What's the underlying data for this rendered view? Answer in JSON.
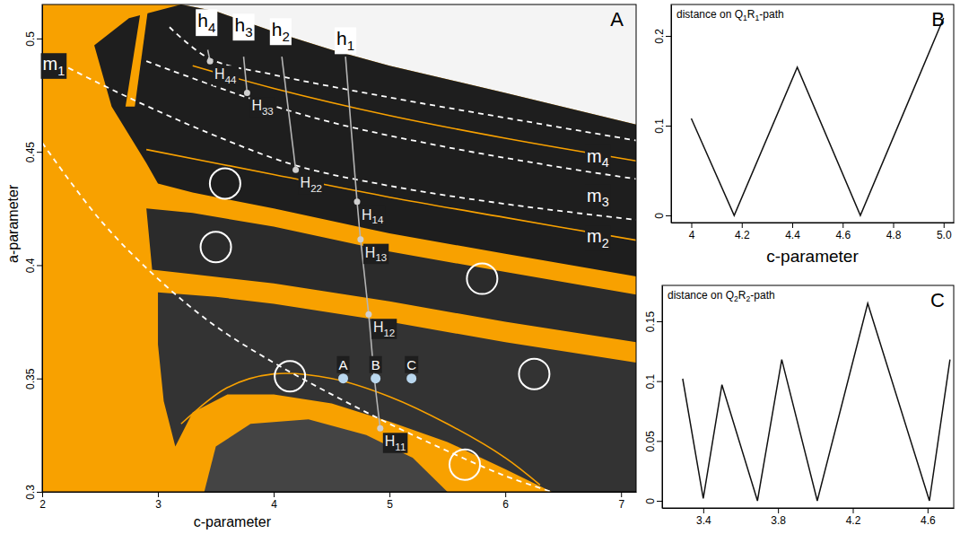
{
  "chart_data": [
    {
      "type": "parameter_plane",
      "label": "A",
      "x_label": "c-parameter",
      "y_label": "a-parameter",
      "color": "#f8a100",
      "xlim": [
        2,
        7.13
      ],
      "ylim": [
        0.3,
        0.515
      ],
      "xticks": [
        2,
        3,
        4,
        5,
        6,
        7
      ],
      "yticks": [
        0.3,
        0.35,
        0.4,
        0.45,
        0.5
      ],
      "regions": [
        {
          "color": "#f4f4f4",
          "points": [
            [
              3.2,
              0.515
            ],
            [
              3.5,
              0.512
            ],
            [
              4.0,
              0.503
            ],
            [
              4.5,
              0.495
            ],
            [
              5.0,
              0.488
            ],
            [
              6.0,
              0.476
            ],
            [
              7.13,
              0.462
            ],
            [
              7.13,
              0.515
            ]
          ]
        },
        {
          "color": "#1e1e1e",
          "points": [
            [
              2.45,
              0.497
            ],
            [
              2.75,
              0.509
            ],
            [
              3.2,
              0.515
            ],
            [
              3.5,
              0.512
            ],
            [
              4.0,
              0.503
            ],
            [
              4.5,
              0.495
            ],
            [
              5.0,
              0.488
            ],
            [
              6.0,
              0.476
            ],
            [
              7.13,
              0.462
            ],
            [
              7.13,
              0.395
            ],
            [
              6.0,
              0.405
            ],
            [
              5.0,
              0.414
            ],
            [
              4.0,
              0.425
            ],
            [
              3.3,
              0.432
            ],
            [
              3.0,
              0.436
            ],
            [
              2.9,
              0.445
            ],
            [
              2.6,
              0.47
            ]
          ]
        },
        {
          "color": "#2b2b2b",
          "points": [
            [
              2.9,
              0.425
            ],
            [
              3.3,
              0.423
            ],
            [
              4.0,
              0.417
            ],
            [
              5.0,
              0.406
            ],
            [
              6.0,
              0.397
            ],
            [
              7.13,
              0.387
            ],
            [
              7.13,
              0.366
            ],
            [
              6.0,
              0.375
            ],
            [
              5.0,
              0.384
            ],
            [
              4.0,
              0.392
            ],
            [
              3.3,
              0.396
            ],
            [
              2.95,
              0.398
            ]
          ]
        },
        {
          "color": "#333333",
          "points": [
            [
              3.0,
              0.388
            ],
            [
              3.5,
              0.386
            ],
            [
              4.0,
              0.383
            ],
            [
              5.0,
              0.375
            ],
            [
              6.0,
              0.366
            ],
            [
              7.13,
              0.357
            ],
            [
              7.13,
              0.3
            ],
            [
              6.4,
              0.3
            ],
            [
              6.0,
              0.31
            ],
            [
              5.5,
              0.322
            ],
            [
              5.0,
              0.331
            ],
            [
              4.5,
              0.339
            ],
            [
              4.0,
              0.343
            ],
            [
              3.6,
              0.343
            ],
            [
              3.3,
              0.335
            ],
            [
              3.15,
              0.32
            ],
            [
              3.05,
              0.34
            ],
            [
              3.0,
              0.365
            ]
          ]
        },
        {
          "color": "#444444",
          "points": [
            [
              3.4,
              0.3
            ],
            [
              3.5,
              0.32
            ],
            [
              3.8,
              0.33
            ],
            [
              4.3,
              0.332
            ],
            [
              4.8,
              0.325
            ],
            [
              5.2,
              0.315
            ],
            [
              5.5,
              0.3
            ]
          ]
        },
        {
          "color": "#f8a100",
          "points": [
            [
              2.72,
              0.47
            ],
            [
              2.86,
              0.515
            ],
            [
              2.92,
              0.515
            ],
            [
              2.8,
              0.47
            ]
          ]
        }
      ],
      "curves": [
        {
          "color": "#f8a100",
          "line_style": "solid",
          "x": [
            2.9,
            4.0,
            5.0,
            6.0,
            7.13
          ],
          "values": [
            0.451,
            0.44,
            0.43,
            0.421,
            0.411
          ]
        },
        {
          "color": "#f8a100",
          "line_style": "solid",
          "x": [
            3.3,
            4.0,
            5.0,
            6.0,
            7.13
          ],
          "values": [
            0.488,
            0.478,
            0.466,
            0.456,
            0.446
          ]
        },
        {
          "color": "#f8a100",
          "line_style": "solid",
          "x": [
            3.2,
            3.6,
            4.0,
            4.5,
            5.0,
            5.5,
            6.0,
            6.3
          ],
          "values": [
            0.33,
            0.346,
            0.352,
            0.35,
            0.342,
            0.33,
            0.315,
            0.303
          ]
        },
        {
          "label": "m1",
          "label_at": [
            2.1,
            0.486
          ],
          "color": "#ffffff",
          "line_style": "dashed",
          "x": [
            2.0,
            2.5,
            3.0,
            3.5,
            4.0,
            4.5,
            5.0,
            5.5,
            6.0,
            6.4
          ],
          "values": [
            0.454,
            0.42,
            0.394,
            0.373,
            0.357,
            0.343,
            0.33,
            0.318,
            0.307,
            0.3
          ]
        },
        {
          "label": "m2",
          "label_at": [
            6.8,
            0.41
          ],
          "color": "#ffffff",
          "line_style": "dashed",
          "x": [
            2.0,
            2.5,
            3.0,
            3.5,
            4.19,
            5.0,
            6.0,
            7.13
          ],
          "values": [
            0.493,
            0.48,
            0.468,
            0.457,
            0.444,
            0.435,
            0.427,
            0.42
          ]
        },
        {
          "label": "m3",
          "label_at": [
            6.8,
            0.428
          ],
          "color": "#ffffff",
          "line_style": "dashed",
          "x": [
            2.9,
            3.77,
            4.5,
            5.5,
            6.5,
            7.13
          ],
          "values": [
            0.49,
            0.474,
            0.463,
            0.452,
            0.443,
            0.438
          ]
        },
        {
          "label": "m4",
          "label_at": [
            6.8,
            0.4455
          ],
          "color": "#ffffff",
          "line_style": "dashed",
          "x": [
            3.1,
            3.45,
            4.0,
            5.0,
            6.0,
            7.13
          ],
          "values": [
            0.505,
            0.491,
            0.484,
            0.474,
            0.465,
            0.455
          ]
        },
        {
          "label": "h1",
          "label_at": [
            4.62,
            0.497
          ],
          "color": "#b4b4b4",
          "line_style": "solid",
          "x": [
            4.62,
            4.72,
            4.75,
            4.82,
            4.87,
            4.92
          ],
          "values": [
            0.492,
            0.428,
            0.4114,
            0.3783,
            0.35,
            0.328
          ]
        },
        {
          "label": "h2",
          "label_at": [
            4.06,
            0.501
          ],
          "color": "#b4b4b4",
          "line_style": "solid",
          "x": [
            4.07,
            4.19
          ],
          "values": [
            0.492,
            0.442
          ]
        },
        {
          "label": "h3",
          "label_at": [
            3.74,
            0.503
          ],
          "color": "#b4b4b4",
          "line_style": "solid",
          "x": [
            3.74,
            3.77
          ],
          "values": [
            0.492,
            0.476
          ]
        },
        {
          "label": "h4",
          "label_at": [
            3.42,
            0.505
          ],
          "color": "#b4b4b4",
          "line_style": "solid",
          "x": [
            3.43,
            3.45
          ],
          "values": [
            0.495,
            0.49
          ]
        }
      ],
      "bifurcation_points": {
        "color": "#d0d0d0",
        "points": [
          {
            "label": "H44",
            "x": 3.45,
            "y": 0.49
          },
          {
            "label": "H33",
            "x": 3.77,
            "y": 0.476
          },
          {
            "label": "H22",
            "x": 4.19,
            "y": 0.442
          },
          {
            "label": "H14",
            "x": 4.72,
            "y": 0.428
          },
          {
            "label": "H13",
            "x": 4.75,
            "y": 0.4114
          },
          {
            "label": "H12",
            "x": 4.82,
            "y": 0.3783
          },
          {
            "label": "H11",
            "x": 4.92,
            "y": 0.328
          }
        ]
      },
      "sample_points": {
        "color": "#b9d7ee",
        "points": [
          {
            "label": "A",
            "x": 4.6,
            "y": 0.35
          },
          {
            "label": "B",
            "x": 4.88,
            "y": 0.35
          },
          {
            "label": "C",
            "x": 5.19,
            "y": 0.35
          }
        ]
      },
      "circles": {
        "color": "#ffffff",
        "points": [
          {
            "x": 3.58,
            "y": 0.436
          },
          {
            "x": 3.5,
            "y": 0.408
          },
          {
            "x": 5.8,
            "y": 0.394
          },
          {
            "x": 4.14,
            "y": 0.351
          },
          {
            "x": 6.25,
            "y": 0.352
          },
          {
            "x": 5.65,
            "y": 0.312
          }
        ]
      }
    },
    {
      "type": "line",
      "label": "B",
      "title": "distance on Q1R1-path",
      "x_label": "c-parameter",
      "color": "#111111",
      "xlim": [
        3.92,
        5.04
      ],
      "ylim": [
        -0.008,
        0.235
      ],
      "xticks": [
        4,
        4.2,
        4.4,
        4.6,
        4.8,
        {
          "value": 5,
          "label": "5.0"
        }
      ],
      "yticks": [
        0,
        0.1,
        0.2
      ],
      "x": [
        4.0,
        4.17,
        4.42,
        4.67,
        5.0
      ],
      "values": [
        0.108,
        0,
        0.165,
        0,
        0.22
      ]
    },
    {
      "type": "line",
      "label": "C",
      "title": "distance on Q2R2-path",
      "color": "#111111",
      "xlim": [
        3.18,
        4.74
      ],
      "ylim": [
        -0.006,
        0.18
      ],
      "xticks": [
        3.4,
        3.8,
        4.2,
        4.6
      ],
      "yticks": [
        0,
        0.05,
        0.1,
        0.15
      ],
      "x": [
        3.29,
        3.4,
        3.5,
        3.69,
        3.82,
        4.01,
        4.28,
        4.61,
        4.72
      ],
      "values": [
        0.102,
        0.002,
        0.097,
        0,
        0.118,
        0,
        0.165,
        0,
        0.118
      ]
    }
  ]
}
